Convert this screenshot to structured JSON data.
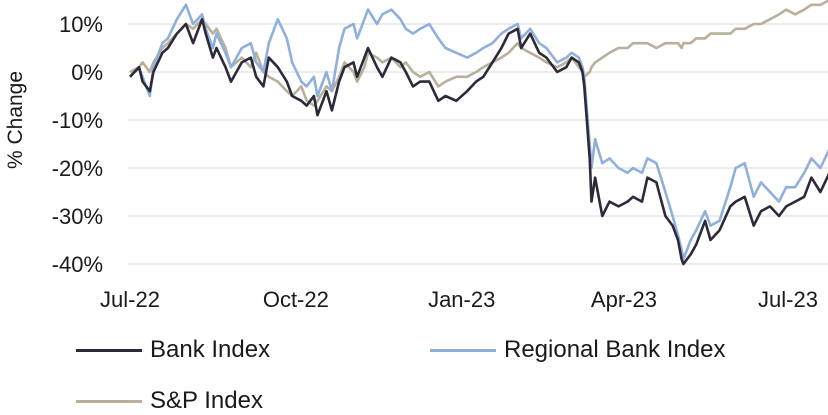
{
  "chart_data": {
    "type": "line",
    "title": "",
    "xlabel": "",
    "ylabel": "% Change",
    "ylim": [
      -40,
      13
    ],
    "xlim": [
      "2022-07-01",
      "2023-07-28"
    ],
    "y_ticks": [
      10,
      0,
      -10,
      -20,
      -30,
      -40
    ],
    "y_tick_labels": [
      "10%",
      "0%",
      "-10%",
      "-20%",
      "-30%",
      "-40%"
    ],
    "x_ticks": [
      "2022-07-01",
      "2022-10-01",
      "2023-01-01",
      "2023-04-01",
      "2023-07-01"
    ],
    "x_tick_labels": [
      "Jul-22",
      "Oct-22",
      "Jan-23",
      "Apr-23",
      "Jul-23"
    ],
    "grid": "horizontal",
    "legend_position": "bottom",
    "series": [
      {
        "name": "Bank Index",
        "color": "#2c2a3a",
        "x": [
          "2022-07-01",
          "2022-07-06",
          "2022-07-08",
          "2022-07-12",
          "2022-07-14",
          "2022-07-19",
          "2022-07-22",
          "2022-07-27",
          "2022-08-01",
          "2022-08-05",
          "2022-08-10",
          "2022-08-12",
          "2022-08-16",
          "2022-08-18",
          "2022-08-23",
          "2022-08-26",
          "2022-09-01",
          "2022-09-06",
          "2022-09-09",
          "2022-09-13",
          "2022-09-16",
          "2022-09-21",
          "2022-09-26",
          "2022-09-29",
          "2022-10-04",
          "2022-10-07",
          "2022-10-11",
          "2022-10-13",
          "2022-10-18",
          "2022-10-21",
          "2022-10-25",
          "2022-10-28",
          "2022-11-02",
          "2022-11-04",
          "2022-11-08",
          "2022-11-10",
          "2022-11-15",
          "2022-11-18",
          "2022-11-23",
          "2022-11-28",
          "2022-12-01",
          "2022-12-05",
          "2022-12-09",
          "2022-12-14",
          "2022-12-19",
          "2022-12-23",
          "2022-12-29",
          "2023-01-04",
          "2023-01-09",
          "2023-01-13",
          "2023-01-18",
          "2023-01-23",
          "2023-01-27",
          "2023-02-01",
          "2023-02-03",
          "2023-02-08",
          "2023-02-13",
          "2023-02-17",
          "2023-02-23",
          "2023-02-28",
          "2023-03-03",
          "2023-03-07",
          "2023-03-09",
          "2023-03-10",
          "2023-03-13",
          "2023-03-14",
          "2023-03-16",
          "2023-03-20",
          "2023-03-24",
          "2023-03-29",
          "2023-04-03",
          "2023-04-06",
          "2023-04-11",
          "2023-04-14",
          "2023-04-19",
          "2023-04-24",
          "2023-04-28",
          "2023-05-01",
          "2023-05-03",
          "2023-05-04",
          "2023-05-08",
          "2023-05-11",
          "2023-05-16",
          "2023-05-19",
          "2023-05-24",
          "2023-05-30",
          "2023-06-02",
          "2023-06-07",
          "2023-06-12",
          "2023-06-16",
          "2023-06-21",
          "2023-06-26",
          "2023-06-30",
          "2023-07-05",
          "2023-07-10",
          "2023-07-14",
          "2023-07-19",
          "2023-07-24",
          "2023-07-28"
        ],
        "values": [
          -1,
          1,
          -2,
          -4,
          0,
          4,
          5,
          8,
          10,
          6,
          11,
          8,
          3,
          5,
          1,
          -2,
          2,
          3,
          -1,
          -3,
          3,
          1,
          -2,
          -5,
          -6,
          -7,
          -5,
          -9,
          -4,
          -8,
          -2,
          1,
          2,
          -1,
          3,
          5,
          1,
          -1,
          3,
          2,
          0,
          -3,
          -2,
          -2,
          -6,
          -5,
          -6,
          -4,
          -2,
          -1,
          2,
          5,
          8,
          9,
          5,
          8,
          4,
          3,
          0,
          1,
          3,
          2,
          0,
          -3,
          -18,
          -27,
          -22,
          -30,
          -27,
          -28,
          -27,
          -26,
          -27,
          -22,
          -23,
          -30,
          -32,
          -35,
          -39,
          -40,
          -38,
          -36,
          -31,
          -35,
          -33,
          -28,
          -27,
          -26,
          -32,
          -29,
          -28,
          -30,
          -28,
          -27,
          -26,
          -22,
          -25,
          -21,
          -19
        ]
      },
      {
        "name": "Regional Bank Index",
        "color": "#8fb0dc",
        "x": [
          "2022-07-01",
          "2022-07-06",
          "2022-07-08",
          "2022-07-12",
          "2022-07-14",
          "2022-07-19",
          "2022-07-22",
          "2022-07-27",
          "2022-08-01",
          "2022-08-05",
          "2022-08-10",
          "2022-08-12",
          "2022-08-16",
          "2022-08-18",
          "2022-08-23",
          "2022-08-26",
          "2022-09-01",
          "2022-09-06",
          "2022-09-09",
          "2022-09-13",
          "2022-09-16",
          "2022-09-21",
          "2022-09-26",
          "2022-09-29",
          "2022-10-04",
          "2022-10-07",
          "2022-10-11",
          "2022-10-13",
          "2022-10-18",
          "2022-10-21",
          "2022-10-25",
          "2022-10-28",
          "2022-11-02",
          "2022-11-04",
          "2022-11-08",
          "2022-11-10",
          "2022-11-15",
          "2022-11-18",
          "2022-11-23",
          "2022-11-28",
          "2022-12-01",
          "2022-12-05",
          "2022-12-09",
          "2022-12-14",
          "2022-12-19",
          "2022-12-23",
          "2022-12-29",
          "2023-01-04",
          "2023-01-09",
          "2023-01-13",
          "2023-01-18",
          "2023-01-23",
          "2023-01-27",
          "2023-02-01",
          "2023-02-03",
          "2023-02-08",
          "2023-02-13",
          "2023-02-17",
          "2023-02-23",
          "2023-02-28",
          "2023-03-03",
          "2023-03-07",
          "2023-03-09",
          "2023-03-10",
          "2023-03-13",
          "2023-03-14",
          "2023-03-16",
          "2023-03-20",
          "2023-03-24",
          "2023-03-29",
          "2023-04-03",
          "2023-04-06",
          "2023-04-11",
          "2023-04-14",
          "2023-04-19",
          "2023-04-24",
          "2023-04-28",
          "2023-05-01",
          "2023-05-03",
          "2023-05-04",
          "2023-05-08",
          "2023-05-11",
          "2023-05-16",
          "2023-05-19",
          "2023-05-24",
          "2023-05-30",
          "2023-06-02",
          "2023-06-07",
          "2023-06-12",
          "2023-06-16",
          "2023-06-21",
          "2023-06-26",
          "2023-06-30",
          "2023-07-05",
          "2023-07-10",
          "2023-07-14",
          "2023-07-19",
          "2023-07-24",
          "2023-07-28"
        ],
        "values": [
          -1,
          1,
          -1,
          -5,
          1,
          6,
          7,
          11,
          14,
          10,
          12,
          9,
          5,
          8,
          4,
          1,
          5,
          6,
          2,
          0,
          6,
          11,
          7,
          2,
          -2,
          -3,
          -1,
          -5,
          0,
          -4,
          5,
          9,
          10,
          7,
          11,
          13,
          10,
          12,
          13,
          11,
          9,
          8,
          9,
          10,
          7,
          5,
          4,
          3,
          4,
          5,
          6,
          8,
          9,
          10,
          7,
          9,
          6,
          5,
          2,
          3,
          4,
          3,
          1,
          -1,
          -15,
          -20,
          -14,
          -19,
          -18,
          -20,
          -21,
          -20,
          -21,
          -18,
          -19,
          -25,
          -30,
          -34,
          -37,
          -39,
          -35,
          -33,
          -29,
          -32,
          -31,
          -24,
          -20,
          -19,
          -26,
          -23,
          -25,
          -27,
          -24,
          -24,
          -21,
          -18,
          -20,
          -16,
          -14
        ]
      },
      {
        "name": "S&P Index",
        "color": "#b8b09a",
        "x": [
          "2022-07-01",
          "2022-07-06",
          "2022-07-08",
          "2022-07-12",
          "2022-07-14",
          "2022-07-19",
          "2022-07-22",
          "2022-07-27",
          "2022-08-01",
          "2022-08-05",
          "2022-08-10",
          "2022-08-12",
          "2022-08-16",
          "2022-08-18",
          "2022-08-23",
          "2022-08-26",
          "2022-09-01",
          "2022-09-06",
          "2022-09-09",
          "2022-09-13",
          "2022-09-16",
          "2022-09-21",
          "2022-09-26",
          "2022-09-29",
          "2022-10-04",
          "2022-10-07",
          "2022-10-11",
          "2022-10-13",
          "2022-10-18",
          "2022-10-21",
          "2022-10-25",
          "2022-10-28",
          "2022-11-02",
          "2022-11-04",
          "2022-11-08",
          "2022-11-10",
          "2022-11-15",
          "2022-11-18",
          "2022-11-23",
          "2022-11-28",
          "2022-12-01",
          "2022-12-05",
          "2022-12-09",
          "2022-12-14",
          "2022-12-19",
          "2022-12-23",
          "2022-12-29",
          "2023-01-04",
          "2023-01-09",
          "2023-01-13",
          "2023-01-18",
          "2023-01-23",
          "2023-01-27",
          "2023-02-01",
          "2023-02-03",
          "2023-02-08",
          "2023-02-13",
          "2023-02-17",
          "2023-02-23",
          "2023-02-28",
          "2023-03-03",
          "2023-03-07",
          "2023-03-09",
          "2023-03-10",
          "2023-03-13",
          "2023-03-14",
          "2023-03-16",
          "2023-03-20",
          "2023-03-24",
          "2023-03-29",
          "2023-04-03",
          "2023-04-06",
          "2023-04-11",
          "2023-04-14",
          "2023-04-19",
          "2023-04-24",
          "2023-04-28",
          "2023-05-01",
          "2023-05-03",
          "2023-05-04",
          "2023-05-08",
          "2023-05-11",
          "2023-05-16",
          "2023-05-19",
          "2023-05-24",
          "2023-05-30",
          "2023-06-02",
          "2023-06-07",
          "2023-06-12",
          "2023-06-16",
          "2023-06-21",
          "2023-06-26",
          "2023-06-30",
          "2023-07-05",
          "2023-07-10",
          "2023-07-14",
          "2023-07-19",
          "2023-07-24",
          "2023-07-28"
        ],
        "values": [
          0,
          1,
          2,
          0,
          2,
          5,
          6,
          8,
          10,
          9,
          11,
          10,
          8,
          9,
          5,
          1,
          3,
          1,
          4,
          0,
          -1,
          -2,
          -4,
          -5,
          -3,
          -6,
          -7,
          -6,
          -3,
          -4,
          -1,
          2,
          0,
          -2,
          1,
          4,
          3,
          2,
          3,
          1,
          2,
          0,
          -1,
          0,
          -3,
          -2,
          -1,
          -1,
          0,
          1,
          2,
          3,
          4,
          6,
          5,
          4,
          3,
          2,
          1,
          2,
          3,
          1,
          0,
          -1,
          0,
          1,
          2,
          3,
          4,
          5,
          5,
          6,
          6,
          6,
          5,
          6,
          6,
          6,
          5,
          6,
          6,
          7,
          7,
          8,
          8,
          8,
          9,
          9,
          10,
          10,
          11,
          12,
          13,
          12,
          13,
          14,
          14,
          15,
          15
        ]
      }
    ]
  }
}
